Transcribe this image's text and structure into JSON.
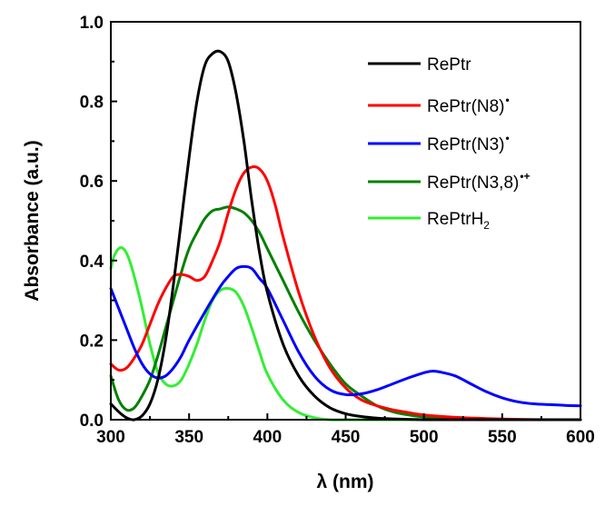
{
  "chart_data": {
    "type": "line",
    "xlabel": "λ (nm)",
    "ylabel": "Absorbance (a.u.)",
    "xlim": [
      300,
      600
    ],
    "ylim": [
      0,
      1.0
    ],
    "xticks": [
      300,
      350,
      400,
      450,
      500,
      550,
      600
    ],
    "xtick_labels": [
      "300",
      "350",
      "400",
      "450",
      "500",
      "550",
      "600"
    ],
    "yticks": [
      0,
      0.2,
      0.4,
      0.6,
      0.8,
      1.0
    ],
    "ytick_labels": [
      "0.0",
      "0.2",
      "0.4",
      "0.6",
      "0.8",
      "1.0"
    ],
    "grid": false,
    "legend_position": "top-right",
    "series": [
      {
        "name": "RePtr",
        "color": "#000000",
        "x": [
          300,
          305,
          310,
          315,
          320,
          325,
          330,
          335,
          340,
          345,
          350,
          355,
          360,
          365,
          370,
          375,
          380,
          385,
          390,
          395,
          400,
          410,
          420,
          430,
          440,
          450,
          460,
          470,
          480,
          490,
          500,
          520,
          540,
          560,
          580,
          600
        ],
        "y": [
          0.04,
          0.02,
          0.005,
          0.0,
          0.01,
          0.04,
          0.1,
          0.2,
          0.34,
          0.5,
          0.66,
          0.8,
          0.89,
          0.92,
          0.925,
          0.9,
          0.82,
          0.7,
          0.55,
          0.42,
          0.32,
          0.19,
          0.11,
          0.06,
          0.03,
          0.015,
          0.008,
          0.004,
          0.002,
          0.001,
          0.0,
          0.0,
          0.0,
          0.0,
          0.0,
          0.0
        ]
      },
      {
        "name": "RePtr(N8)",
        "name_sup": "•",
        "color": "#ff0000",
        "x": [
          300,
          305,
          310,
          315,
          320,
          325,
          330,
          335,
          340,
          345,
          350,
          355,
          360,
          365,
          370,
          375,
          380,
          385,
          390,
          395,
          400,
          405,
          410,
          420,
          430,
          440,
          450,
          460,
          470,
          480,
          490,
          500,
          520,
          540,
          560,
          580,
          600
        ],
        "y": [
          0.14,
          0.125,
          0.13,
          0.155,
          0.19,
          0.24,
          0.29,
          0.33,
          0.36,
          0.365,
          0.36,
          0.35,
          0.36,
          0.4,
          0.45,
          0.52,
          0.58,
          0.62,
          0.635,
          0.63,
          0.6,
          0.54,
          0.46,
          0.32,
          0.21,
          0.13,
          0.08,
          0.05,
          0.035,
          0.025,
          0.018,
          0.012,
          0.006,
          0.003,
          0.001,
          0.0,
          0.0
        ]
      },
      {
        "name": "RePtr(N3)",
        "name_sup": "•",
        "color": "#0000ff",
        "x": [
          300,
          305,
          310,
          315,
          320,
          325,
          330,
          335,
          340,
          345,
          350,
          360,
          370,
          375,
          380,
          385,
          390,
          395,
          400,
          410,
          420,
          430,
          440,
          450,
          460,
          470,
          480,
          490,
          500,
          505,
          510,
          520,
          530,
          540,
          550,
          560,
          570,
          580,
          590,
          600
        ],
        "y": [
          0.33,
          0.28,
          0.23,
          0.18,
          0.14,
          0.115,
          0.105,
          0.11,
          0.13,
          0.16,
          0.2,
          0.27,
          0.335,
          0.36,
          0.38,
          0.385,
          0.38,
          0.355,
          0.33,
          0.25,
          0.17,
          0.11,
          0.075,
          0.063,
          0.065,
          0.075,
          0.09,
          0.105,
          0.118,
          0.122,
          0.12,
          0.11,
          0.09,
          0.07,
          0.055,
          0.045,
          0.04,
          0.038,
          0.036,
          0.035
        ]
      },
      {
        "name": "RePtr(N3,8)",
        "name_sup": "•+",
        "color": "#008000",
        "x": [
          300,
          305,
          310,
          315,
          320,
          325,
          330,
          335,
          340,
          345,
          350,
          355,
          360,
          365,
          370,
          375,
          380,
          385,
          390,
          395,
          400,
          410,
          420,
          430,
          440,
          450,
          460,
          470,
          480,
          490,
          500,
          520,
          540,
          560,
          580,
          600
        ],
        "y": [
          0.11,
          0.05,
          0.025,
          0.03,
          0.06,
          0.1,
          0.16,
          0.23,
          0.3,
          0.37,
          0.43,
          0.47,
          0.505,
          0.525,
          0.53,
          0.535,
          0.53,
          0.52,
          0.5,
          0.47,
          0.43,
          0.35,
          0.27,
          0.2,
          0.14,
          0.09,
          0.06,
          0.035,
          0.02,
          0.012,
          0.007,
          0.003,
          0.001,
          0.0,
          0.0,
          0.0
        ]
      },
      {
        "name": "RePtrH",
        "name_sub": "2",
        "color": "#33ee33",
        "x": [
          300,
          302,
          305,
          308,
          311,
          315,
          320,
          325,
          330,
          335,
          340,
          345,
          350,
          355,
          360,
          365,
          370,
          375,
          380,
          385,
          390,
          395,
          400,
          410,
          420,
          430,
          440,
          450,
          460,
          480,
          500,
          550,
          600
        ],
        "y": [
          0.38,
          0.41,
          0.43,
          0.43,
          0.41,
          0.36,
          0.28,
          0.19,
          0.12,
          0.09,
          0.085,
          0.1,
          0.14,
          0.19,
          0.25,
          0.3,
          0.325,
          0.33,
          0.32,
          0.285,
          0.23,
          0.17,
          0.115,
          0.05,
          0.018,
          0.005,
          0.0,
          0.0,
          0.0,
          0.0,
          0.0,
          0.0,
          0.0
        ]
      }
    ]
  }
}
